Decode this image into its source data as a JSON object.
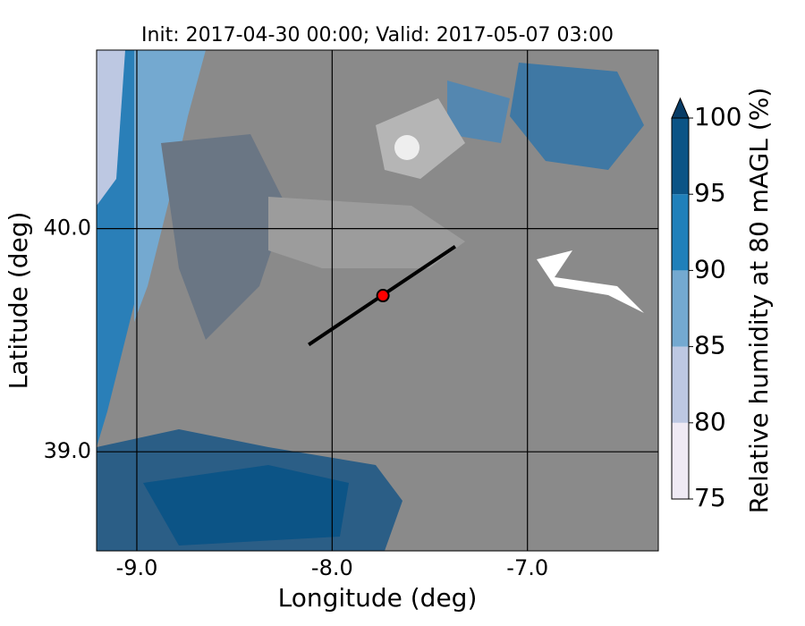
{
  "chart_data": {
    "type": "map",
    "title": "Init: 2017-04-30 00:00; Valid: 2017-05-07 03:00",
    "x_label": "Longitude (deg)",
    "y_label": "Latitude (deg)",
    "xlim": [
      -9.206,
      -6.33
    ],
    "ylim": [
      38.556,
      40.8
    ],
    "xticks": [
      {
        "value": -9,
        "label": "-9.0"
      },
      {
        "value": -8,
        "label": "-8.0"
      },
      {
        "value": -7,
        "label": "-7.0"
      }
    ],
    "yticks": [
      {
        "value": 39,
        "label": "39.0"
      },
      {
        "value": 40,
        "label": "40.0"
      }
    ],
    "grid": true,
    "cross_section": {
      "lon": [
        -8.12,
        -7.37
      ],
      "lat": [
        39.48,
        39.92
      ],
      "color": "#000000"
    },
    "point": {
      "lon": -7.74,
      "lat": 39.7,
      "color": "#ff0000"
    },
    "colorbar": {
      "label": "Relative humidity at 80 mAGL (%)",
      "levels": [
        75,
        80,
        85,
        90,
        95,
        100
      ],
      "colors": [
        "#efeaf4",
        "#bdc8e2",
        "#74a9d0",
        "#2080ba",
        "#0c5486"
      ],
      "extend": "max",
      "extend_color": "#083c66",
      "ticks": [
        75,
        80,
        85,
        90,
        95,
        100
      ]
    }
  }
}
